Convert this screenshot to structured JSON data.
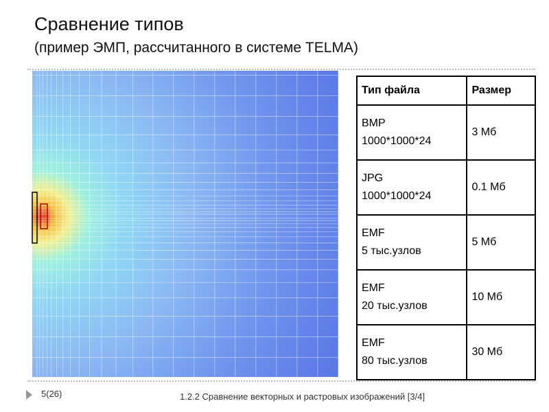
{
  "header": {
    "title": "Сравнение типов",
    "subtitle": "(пример ЭМП, рассчитанного в системе TELMA)"
  },
  "table": {
    "columns": [
      "Тип файла",
      "Размер"
    ],
    "rows": [
      {
        "type": [
          "BMP",
          "1000*1000*24"
        ],
        "size": "3 Мб"
      },
      {
        "type": [
          "JPG",
          "1000*1000*24"
        ],
        "size": "0.1 Мб"
      },
      {
        "type": [
          "EMF",
          "5 тыс.узлов"
        ],
        "size": "5 Мб"
      },
      {
        "type": [
          "EMF",
          "20 тыс.узлов"
        ],
        "size": "10 Мб"
      },
      {
        "type": [
          "EMF",
          "80 тыс.узлов"
        ],
        "size": "30 Мб"
      }
    ]
  },
  "footer": {
    "page": "5(26)",
    "section": "1.2.2 Сравнение векторных и растровых изображений  [3/4]"
  }
}
